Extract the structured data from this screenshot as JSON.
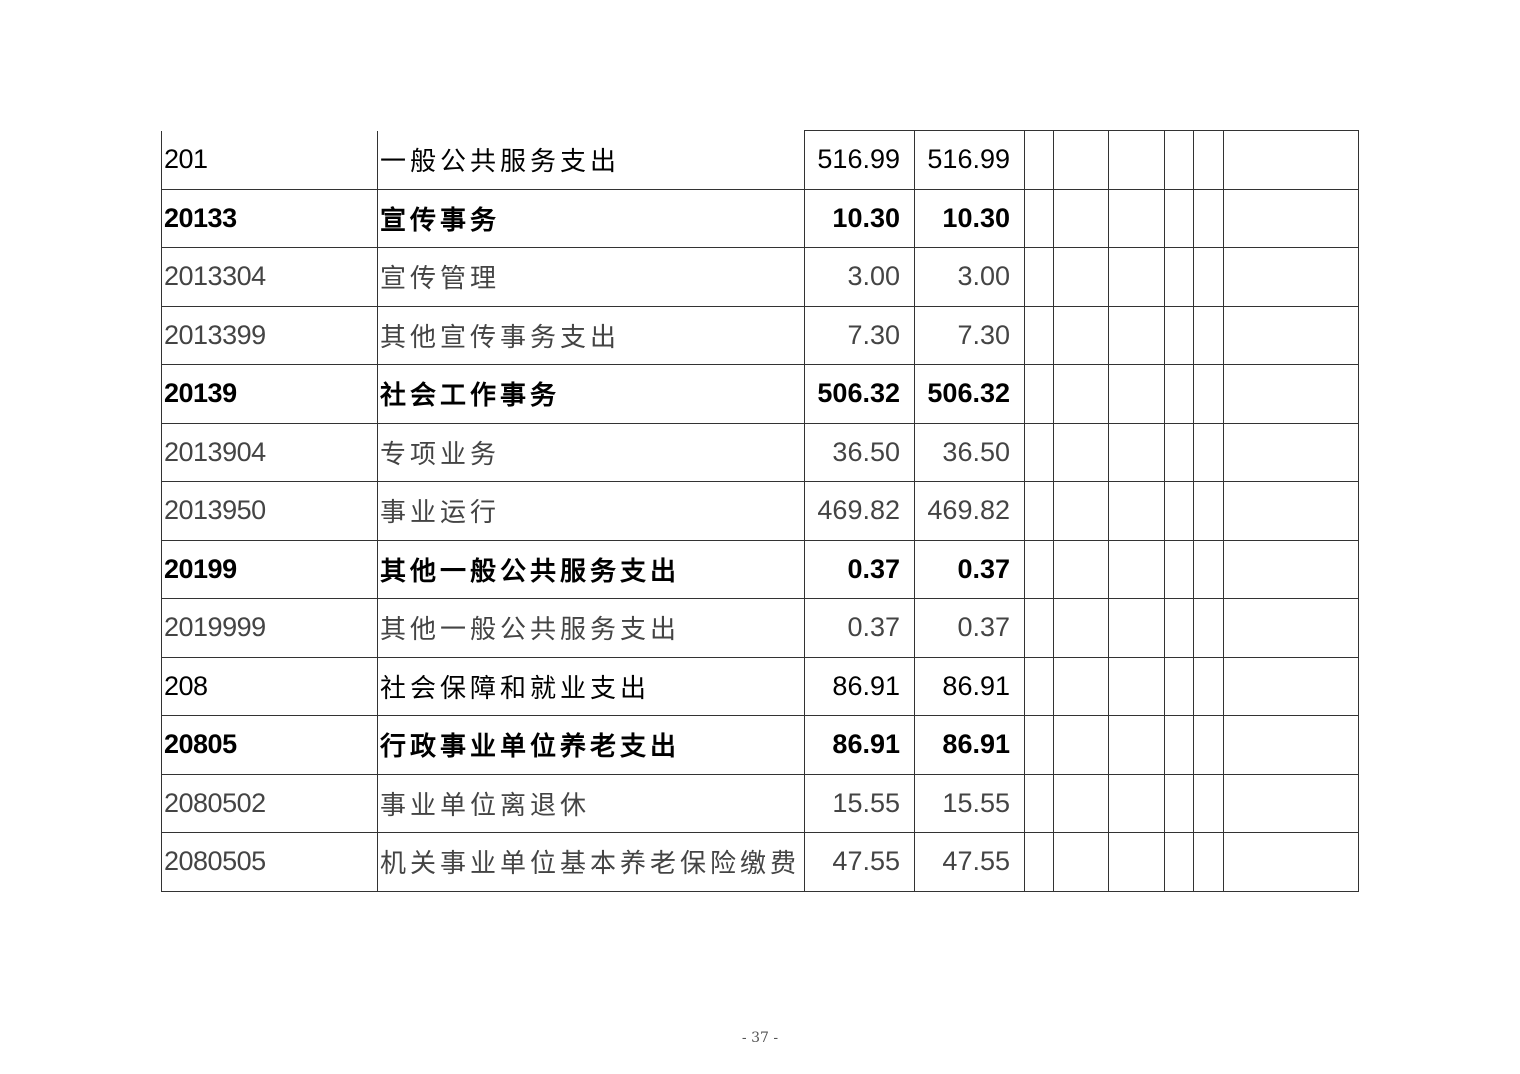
{
  "table": {
    "rows": [
      {
        "code": "201",
        "name": "一般公共服务支出",
        "v1": "516.99",
        "v2": "516.99"
      },
      {
        "code": "20133",
        "name": "宣传事务",
        "v1": "10.30",
        "v2": "10.30"
      },
      {
        "code": "2013304",
        "name": "宣传管理",
        "v1": "3.00",
        "v2": "3.00"
      },
      {
        "code": "2013399",
        "name": "其他宣传事务支出",
        "v1": "7.30",
        "v2": "7.30"
      },
      {
        "code": "20139",
        "name": "社会工作事务",
        "v1": "506.32",
        "v2": "506.32"
      },
      {
        "code": "2013904",
        "name": "专项业务",
        "v1": "36.50",
        "v2": "36.50"
      },
      {
        "code": "2013950",
        "name": "事业运行",
        "v1": "469.82",
        "v2": "469.82"
      },
      {
        "code": "20199",
        "name": "其他一般公共服务支出",
        "v1": "0.37",
        "v2": "0.37"
      },
      {
        "code": "2019999",
        "name": "其他一般公共服务支出",
        "v1": "0.37",
        "v2": "0.37"
      },
      {
        "code": "208",
        "name": "社会保障和就业支出",
        "v1": "86.91",
        "v2": "86.91"
      },
      {
        "code": "20805",
        "name": "行政事业单位养老支出",
        "v1": "86.91",
        "v2": "86.91"
      },
      {
        "code": "2080502",
        "name": "事业单位离退休",
        "v1": "15.55",
        "v2": "15.55"
      },
      {
        "code": "2080505",
        "name": "机关事业单位基本养老保险缴费",
        "v1": "47.55",
        "v2": "47.55"
      }
    ]
  },
  "footer": {
    "page_number": "- 37 -"
  }
}
